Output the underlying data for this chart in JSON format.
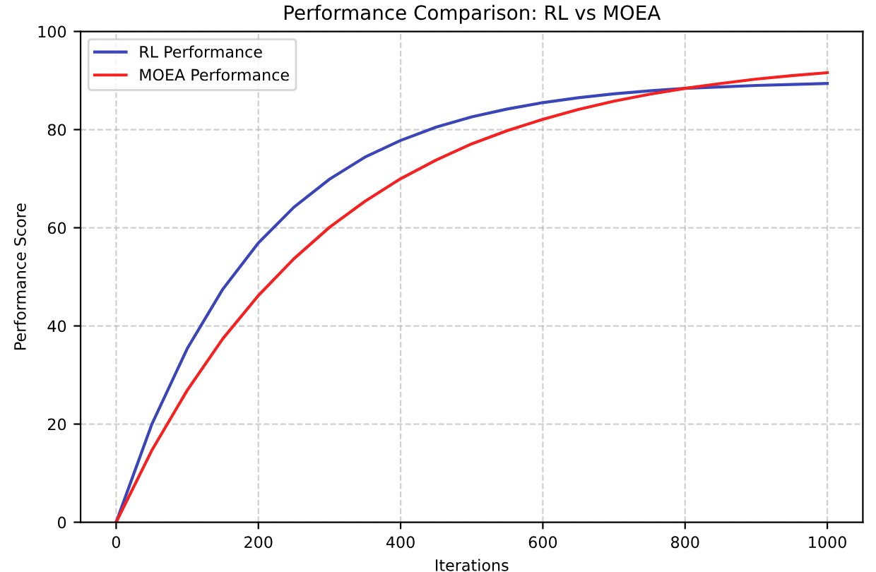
{
  "chart_data": {
    "type": "line",
    "title": "Performance Comparison: RL vs MOEA",
    "xlabel": "Iterations",
    "ylabel": "Performance Score",
    "x": [
      0,
      50,
      100,
      150,
      200,
      250,
      300,
      350,
      400,
      450,
      500,
      550,
      600,
      650,
      700,
      750,
      800,
      850,
      900,
      950,
      1000
    ],
    "series": [
      {
        "name": "RL Performance",
        "color": "#3a46b8",
        "values": [
          0,
          19.9,
          35.4,
          47.5,
          56.9,
          64.2,
          69.9,
          74.4,
          77.8,
          80.5,
          82.6,
          84.2,
          85.5,
          86.5,
          87.3,
          87.9,
          88.4,
          88.7,
          89.0,
          89.2,
          89.4
        ]
      },
      {
        "name": "MOEA Performance",
        "color": "#f52020",
        "values": [
          0,
          14.6,
          26.9,
          37.4,
          46.2,
          53.7,
          60.1,
          65.4,
          70.0,
          73.8,
          77.1,
          79.8,
          82.1,
          84.1,
          85.8,
          87.2,
          88.4,
          89.4,
          90.3,
          91.0,
          91.6
        ]
      }
    ],
    "xlim": [
      -50,
      1050
    ],
    "ylim": [
      0,
      100
    ],
    "xticks": [
      0,
      200,
      400,
      600,
      800,
      1000
    ],
    "yticks": [
      0,
      20,
      40,
      60,
      80,
      100
    ],
    "grid": true,
    "legend": "top left",
    "line_style": "solid",
    "marker": "none"
  }
}
